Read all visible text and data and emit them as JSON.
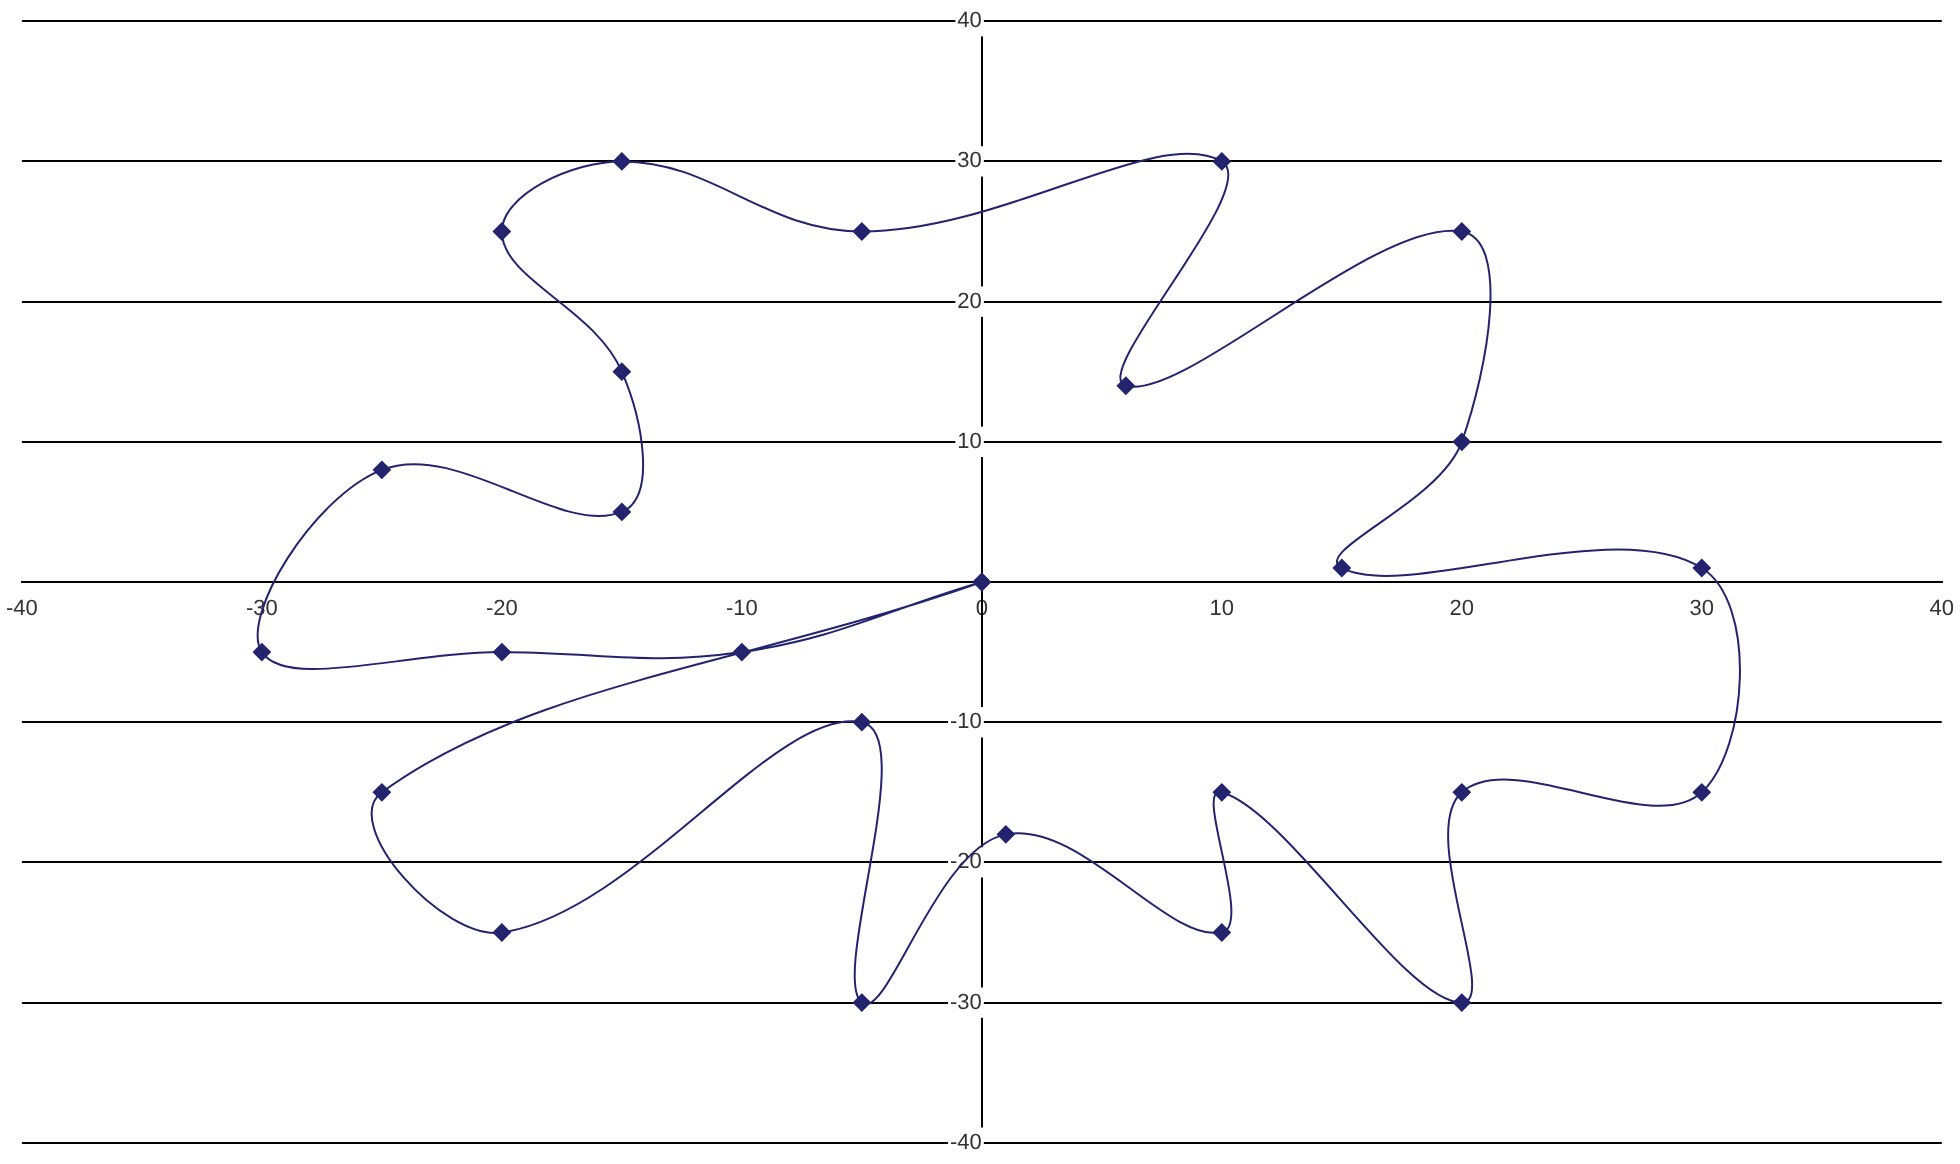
{
  "chart_data": {
    "type": "scatter",
    "x": [
      0,
      -25,
      -20,
      -5,
      -5,
      1,
      10,
      10,
      20,
      20,
      30,
      30,
      15,
      20,
      20,
      6,
      10,
      -5,
      -15,
      -20,
      -15,
      -15,
      -25,
      -30,
      -20,
      -10,
      0
    ],
    "series": [
      {
        "color": "#24246e",
        "values": [
          0,
          -15,
          -25,
          -10,
          -30,
          -18,
          -25,
          -15,
          -30,
          -15,
          -15,
          1,
          1,
          10,
          25,
          14,
          30,
          25,
          30,
          25,
          15,
          5,
          8,
          -5,
          -5,
          -5,
          0
        ]
      }
    ],
    "xlim": [
      -40,
      40
    ],
    "xticks": [
      -40,
      -30,
      -20,
      -10,
      0,
      10,
      20,
      30,
      40
    ],
    "ylim": [
      -40,
      40
    ],
    "yticks": [
      -40,
      -30,
      -20,
      -10,
      {
        "value": 0,
        "label": null
      },
      10,
      20,
      30,
      40
    ],
    "grid": "y",
    "legend": false,
    "marker": "diamond",
    "line_style": "solid"
  }
}
